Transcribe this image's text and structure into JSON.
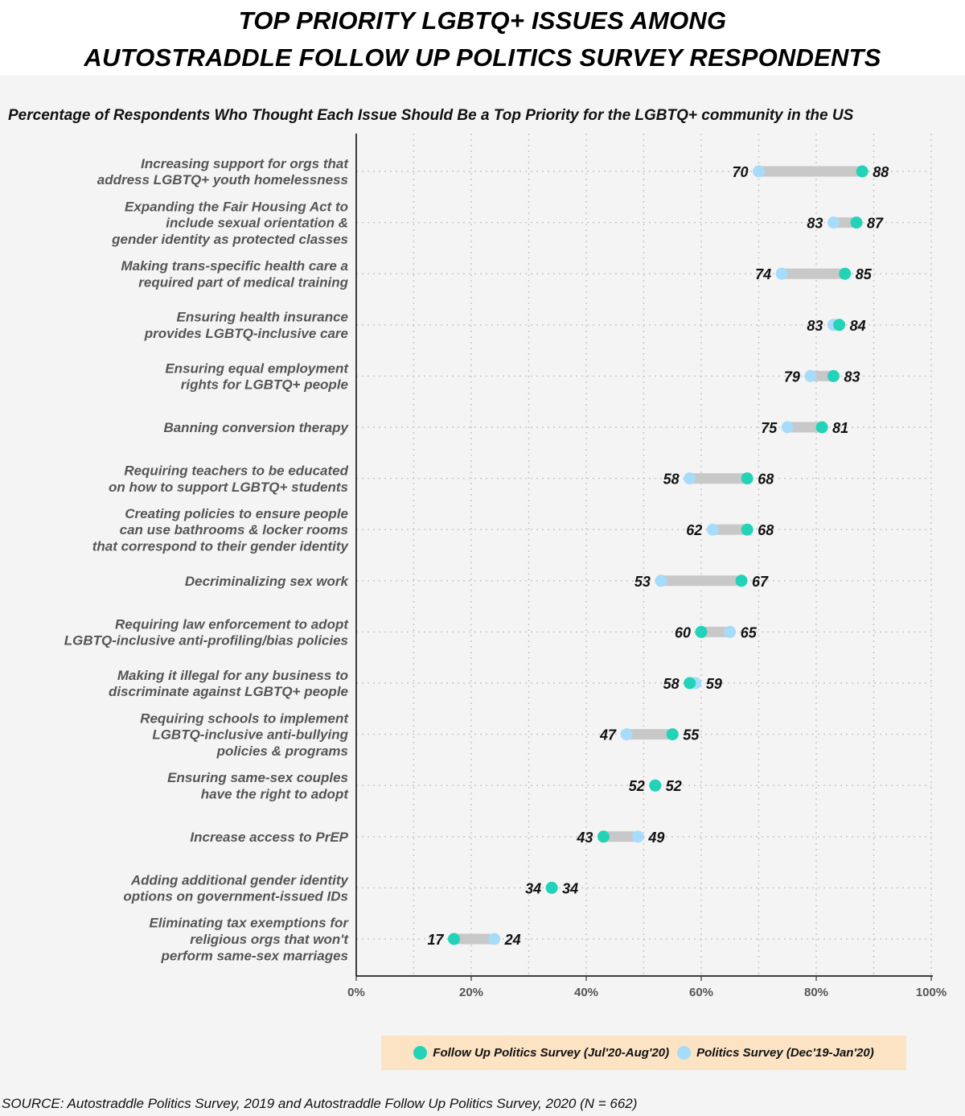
{
  "header": {
    "title_line1": "TOP PRIORITY LGBTQ+ ISSUES AMONG",
    "title_line2": "AUTOSTRADDLE FOLLOW UP POLITICS SURVEY RESPONDENTS",
    "subtitle": "Percentage of Respondents Who Thought Each Issue Should Be a Top Priority for the LGBTQ+ community in the US"
  },
  "legend": {
    "follow_up_label": "Follow Up Politics Survey (Jul'20-Aug'20)",
    "politics_label": "Politics Survey (Dec'19-Jan'20)"
  },
  "source": "SOURCE: Autostraddle Politics Survey, 2019 and Autostraddle Follow Up Politics Survey, 2020 (N = 662)",
  "colors": {
    "follow_up": "#22d3b8",
    "politics": "#a6dcf9",
    "connector": "#c8c8c8",
    "legend_bg": "#fbe3c4"
  },
  "chart_data": {
    "type": "dumbbell",
    "title": "TOP PRIORITY LGBTQ+ ISSUES AMONG AUTOSTRADDLE FOLLOW UP POLITICS SURVEY RESPONDENTS",
    "xlim": [
      0,
      100
    ],
    "x_ticks": [
      "0%",
      "20%",
      "40%",
      "60%",
      "80%",
      "100%"
    ],
    "series_names": [
      "Follow Up Politics Survey (Jul'20-Aug'20)",
      "Politics Survey (Dec'19-Jan'20)"
    ],
    "categories": [
      {
        "lines": [
          "Increasing support for orgs that",
          "address LGBTQ+ youth homelessness"
        ],
        "follow_up": 88,
        "politics": 70
      },
      {
        "lines": [
          "Expanding the Fair Housing Act to",
          "include sexual orientation &",
          "gender identity as protected classes"
        ],
        "follow_up": 87,
        "politics": 83
      },
      {
        "lines": [
          "Making trans-specific health care a",
          "required part of medical training"
        ],
        "follow_up": 85,
        "politics": 74
      },
      {
        "lines": [
          "Ensuring health insurance",
          "provides LGBTQ-inclusive care"
        ],
        "follow_up": 84,
        "politics": 83
      },
      {
        "lines": [
          "Ensuring equal employment",
          "rights for LGBTQ+ people"
        ],
        "follow_up": 83,
        "politics": 79
      },
      {
        "lines": [
          "Banning conversion therapy"
        ],
        "follow_up": 81,
        "politics": 75
      },
      {
        "lines": [
          "Requiring teachers to be educated",
          "on how to support LGBTQ+ students"
        ],
        "follow_up": 68,
        "politics": 58
      },
      {
        "lines": [
          "Creating policies to ensure people",
          "can use bathrooms & locker rooms",
          "that correspond to their gender identity"
        ],
        "follow_up": 68,
        "politics": 62
      },
      {
        "lines": [
          "Decriminalizing sex work"
        ],
        "follow_up": 67,
        "politics": 53
      },
      {
        "lines": [
          "Requiring law enforcement to adopt",
          "LGBTQ-inclusive anti-profiling/bias policies"
        ],
        "follow_up": 60,
        "politics": 65
      },
      {
        "lines": [
          "Making it illegal for any business to",
          "discriminate against LGBTQ+ people"
        ],
        "follow_up": 58,
        "politics": 59
      },
      {
        "lines": [
          "Requiring schools to implement",
          "LGBTQ-inclusive anti-bullying",
          "policies & programs"
        ],
        "follow_up": 55,
        "politics": 47
      },
      {
        "lines": [
          "Ensuring same-sex couples",
          "have the right to adopt"
        ],
        "follow_up": 52,
        "politics": 52
      },
      {
        "lines": [
          "Increase access to PrEP"
        ],
        "follow_up": 43,
        "politics": 49
      },
      {
        "lines": [
          "Adding additional gender identity",
          "options on government-issued IDs"
        ],
        "follow_up": 34,
        "politics": 34
      },
      {
        "lines": [
          "Eliminating tax exemptions for",
          "religious orgs that won't",
          "perform same-sex marriages"
        ],
        "follow_up": 17,
        "politics": 24
      }
    ]
  }
}
